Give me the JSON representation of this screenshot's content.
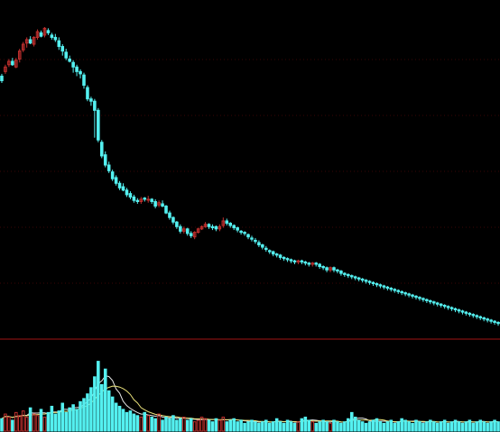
{
  "colors": {
    "background": "#000000",
    "up": "#c0302e",
    "down": "#54f0f0",
    "grid": "#3a0606",
    "divider": "#a01515",
    "ma_yellow": "#e8e07a",
    "ma_white": "#e6e6e6"
  },
  "chart_data": {
    "type": "candlestick",
    "panels": [
      "price",
      "volume"
    ],
    "grid": true,
    "candles": [
      [
        118,
        114,
        112,
        120
      ],
      [
        122,
        126,
        120,
        128
      ],
      [
        128,
        131,
        126,
        133
      ],
      [
        131,
        128,
        127,
        134
      ],
      [
        126,
        132,
        125,
        134
      ],
      [
        133,
        140,
        130,
        142
      ],
      [
        141,
        146,
        139,
        148
      ],
      [
        147,
        150,
        143,
        152
      ],
      [
        150,
        147,
        146,
        153
      ],
      [
        146,
        152,
        144,
        153
      ],
      [
        152,
        157,
        150,
        159
      ],
      [
        156,
        153,
        152,
        158
      ],
      [
        154,
        160,
        152,
        161
      ],
      [
        158,
        156,
        154,
        160
      ],
      [
        154,
        152,
        150,
        156
      ],
      [
        152,
        150,
        148,
        155
      ],
      [
        149,
        144,
        141,
        152
      ],
      [
        144,
        140,
        136,
        146
      ],
      [
        139,
        134,
        132,
        142
      ],
      [
        133,
        131,
        130,
        136
      ],
      [
        130,
        126,
        121,
        132
      ],
      [
        126,
        122,
        118,
        128
      ],
      [
        122,
        120,
        116,
        124
      ],
      [
        119,
        110,
        107,
        121
      ],
      [
        108,
        98,
        96,
        110
      ],
      [
        98,
        96,
        92,
        100
      ],
      [
        96,
        88,
        64,
        98
      ],
      [
        88,
        62,
        60,
        90
      ],
      [
        60,
        48,
        46,
        62
      ],
      [
        49,
        40,
        38,
        52
      ],
      [
        40,
        35,
        33,
        43
      ],
      [
        34,
        28,
        26,
        36
      ],
      [
        29,
        24,
        22,
        31
      ],
      [
        24,
        20,
        18,
        26
      ],
      [
        21,
        18,
        17,
        24
      ],
      [
        18,
        14,
        12,
        20
      ],
      [
        15,
        12,
        10,
        17
      ],
      [
        12,
        9,
        7,
        14
      ],
      [
        9,
        8,
        6,
        11
      ],
      [
        8,
        10,
        6,
        12
      ],
      [
        11,
        10,
        8,
        12
      ],
      [
        10,
        10,
        7,
        13
      ],
      [
        10,
        8,
        6,
        11
      ],
      [
        8,
        4,
        2,
        10
      ],
      [
        5,
        7,
        3,
        9
      ],
      [
        6,
        4,
        3,
        9
      ],
      [
        4,
        -2,
        -3,
        5
      ],
      [
        -2,
        -6,
        -8,
        0
      ],
      [
        -6,
        -10,
        -12,
        -5
      ],
      [
        -10,
        -14,
        -16,
        -9
      ],
      [
        -14,
        -18,
        -20,
        -12
      ],
      [
        -18,
        -16,
        -20,
        -14
      ],
      [
        -16,
        -20,
        -22,
        -15
      ],
      [
        -20,
        -22,
        -24,
        -18
      ],
      [
        -23,
        -19,
        -25,
        -18
      ],
      [
        -19,
        -16,
        -20,
        -15
      ],
      [
        -16,
        -14,
        -17,
        -13
      ],
      [
        -14,
        -12,
        -15,
        -10
      ],
      [
        -12,
        -14,
        -16,
        -11
      ],
      [
        -14,
        -15,
        -17,
        -12
      ],
      [
        -14,
        -16,
        -18,
        -13
      ],
      [
        -16,
        -14,
        -18,
        -12
      ],
      [
        -13,
        -9,
        -15,
        -6
      ],
      [
        -9,
        -11,
        -13,
        -7
      ],
      [
        -11,
        -13,
        -15,
        -10
      ],
      [
        -13,
        -15,
        -17,
        -12
      ],
      [
        -15,
        -17,
        -19,
        -14
      ],
      [
        -18,
        -19,
        -21,
        -17
      ],
      [
        -19,
        -20,
        -22,
        -18
      ],
      [
        -21,
        -23,
        -25,
        -20
      ],
      [
        -24,
        -25,
        -27,
        -22
      ],
      [
        -26,
        -27,
        -29,
        -24
      ],
      [
        -28,
        -30,
        -32,
        -26
      ],
      [
        -30,
        -32,
        -34,
        -29
      ],
      [
        -33,
        -34,
        -36,
        -31
      ],
      [
        -35,
        -36,
        -38,
        -34
      ],
      [
        -36,
        -38,
        -40,
        -35
      ],
      [
        -38,
        -39,
        -41,
        -37
      ],
      [
        -39,
        -41,
        -43,
        -38
      ],
      [
        -41,
        -42,
        -44,
        -40
      ],
      [
        -42,
        -43,
        -45,
        -41
      ],
      [
        -43,
        -44,
        -46,
        -42
      ],
      [
        -44,
        -45,
        -47,
        -43
      ],
      [
        -45,
        -44,
        -47,
        -43
      ],
      [
        -44,
        -45,
        -47,
        -43
      ],
      [
        -45,
        -46,
        -48,
        -44
      ],
      [
        -46,
        -47,
        -49,
        -45
      ],
      [
        -47,
        -46,
        -49,
        -45
      ],
      [
        -46,
        -47,
        -49,
        -45
      ],
      [
        -47,
        -49,
        -51,
        -46
      ],
      [
        -49,
        -50,
        -52,
        -48
      ],
      [
        -50,
        -52,
        -54,
        -49
      ],
      [
        -52,
        -50,
        -54,
        -49
      ],
      [
        -50,
        -52,
        -54,
        -49
      ],
      [
        -52,
        -53,
        -55,
        -51
      ],
      [
        -53,
        -55,
        -57,
        -52
      ],
      [
        -55,
        -56,
        -58,
        -54
      ],
      [
        -56,
        -57,
        -59,
        -55
      ],
      [
        -57,
        -58,
        -60,
        -56
      ],
      [
        -58,
        -59,
        -61,
        -57
      ],
      [
        -59,
        -60,
        -62,
        -58
      ],
      [
        -60,
        -61,
        -63,
        -59
      ],
      [
        -61,
        -62,
        -64,
        -60
      ],
      [
        -62,
        -63,
        -65,
        -61
      ],
      [
        -63,
        -64,
        -66,
        -62
      ],
      [
        -64,
        -65,
        -67,
        -63
      ],
      [
        -65,
        -66,
        -68,
        -64
      ],
      [
        -66,
        -67,
        -69,
        -65
      ],
      [
        -67,
        -68,
        -70,
        -66
      ],
      [
        -68,
        -69,
        -71,
        -67
      ],
      [
        -69,
        -70,
        -72,
        -68
      ],
      [
        -70,
        -71,
        -73,
        -69
      ],
      [
        -71,
        -72,
        -74,
        -70
      ],
      [
        -72,
        -73,
        -75,
        -71
      ],
      [
        -73,
        -74,
        -76,
        -72
      ],
      [
        -74,
        -75,
        -77,
        -73
      ],
      [
        -75,
        -76,
        -78,
        -74
      ],
      [
        -76,
        -77,
        -79,
        -75
      ],
      [
        -77,
        -78,
        -80,
        -76
      ],
      [
        -78,
        -79,
        -81,
        -77
      ],
      [
        -79,
        -80,
        -82,
        -78
      ],
      [
        -80,
        -81,
        -83,
        -79
      ],
      [
        -81,
        -82,
        -84,
        -80
      ],
      [
        -82,
        -83,
        -85,
        -81
      ],
      [
        -83,
        -84,
        -86,
        -82
      ],
      [
        -84,
        -85,
        -87,
        -83
      ],
      [
        -85,
        -86,
        -88,
        -84
      ],
      [
        -86,
        -87,
        -89,
        -85
      ],
      [
        -87,
        -88,
        -90,
        -86
      ],
      [
        -88,
        -89,
        -91,
        -87
      ],
      [
        -89,
        -90,
        -92,
        -88
      ],
      [
        -90,
        -91,
        -93,
        -89
      ],
      [
        -91,
        -92,
        -94,
        -90
      ],
      [
        -92,
        -93,
        -95,
        -91
      ],
      [
        -93,
        -94,
        -96,
        -92
      ],
      [
        -94,
        -95,
        -97,
        -93
      ],
      [
        -95,
        -96,
        -98,
        -94
      ],
      [
        -96,
        -97,
        -99,
        -95
      ],
      [
        -97,
        -98,
        -100,
        -96
      ],
      [
        -98,
        -99,
        -101,
        -97
      ]
    ],
    "volume": [
      8,
      11,
      9,
      7,
      12,
      10,
      13,
      9,
      15,
      11,
      10,
      14,
      9,
      12,
      16,
      11,
      13,
      18,
      12,
      15,
      17,
      14,
      19,
      21,
      24,
      28,
      35,
      45,
      30,
      40,
      26,
      22,
      18,
      16,
      14,
      12,
      13,
      11,
      10,
      9,
      12,
      10,
      9,
      8,
      11,
      7,
      9,
      8,
      10,
      7,
      8,
      9,
      7,
      8,
      6,
      7,
      9,
      8,
      7,
      6,
      8,
      7,
      9,
      6,
      7,
      8,
      6,
      7,
      5,
      6,
      7,
      6,
      5,
      6,
      7,
      5,
      6,
      8,
      6,
      5,
      7,
      6,
      5,
      6,
      8,
      9,
      7,
      6,
      5,
      6,
      7,
      6,
      5,
      7,
      6,
      5,
      6,
      8,
      12,
      9,
      7,
      6,
      5,
      6,
      7,
      8,
      6,
      5,
      6,
      7,
      5,
      6,
      8,
      7,
      6,
      5,
      7,
      6,
      5,
      6,
      7,
      6,
      5,
      6,
      7,
      5,
      6,
      7,
      6,
      5,
      6,
      7,
      5,
      6,
      7,
      6,
      5,
      6,
      7,
      6
    ],
    "price_range": [
      -100,
      165
    ],
    "volume_range": [
      0,
      50
    ]
  }
}
